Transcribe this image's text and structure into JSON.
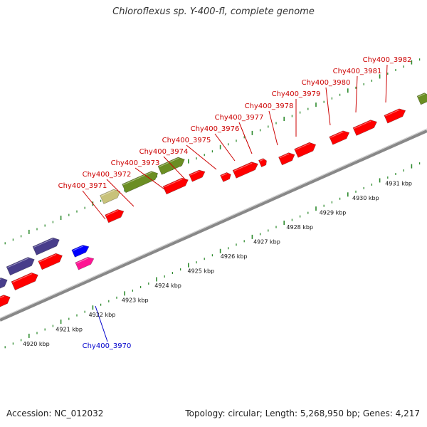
{
  "title": "Chloroflexus sp. Y-400-fl, complete genome",
  "footer": {
    "accession": "Accession: NC_012032",
    "summary": "Topology: circular; Length: 5,268,950 bp; Genes: 4,217"
  },
  "colors": {
    "backbone": "#8c8c8c",
    "ticks": "#2e8b2e",
    "label_forward": "#cc0000",
    "label_reverse": "#0000cc",
    "gene_red": "#ff0000",
    "gene_olive": "#6b8e23",
    "gene_khaki": "#c8c27a",
    "gene_slate": "#483d8b",
    "gene_blue": "#0000ff",
    "gene_magenta": "#ff1493"
  },
  "kbp_ticks": [
    "4920 kbp",
    "4921 kbp",
    "4922 kbp",
    "4923 kbp",
    "4924 kbp",
    "4925 kbp",
    "4926 kbp",
    "4927 kbp",
    "4928 kbp",
    "4929 kbp",
    "4930 kbp",
    "4931 kbp"
  ],
  "gene_labels": [
    "Chy400_3971",
    "Chy400_3972",
    "Chy400_3973",
    "Chy400_3974",
    "Chy400_3975",
    "Chy400_3976",
    "Chy400_3977",
    "Chy400_3978",
    "Chy400_3979",
    "Chy400_3980",
    "Chy400_3981",
    "Chy400_3982"
  ],
  "reverse_label": "Chy400_3970"
}
